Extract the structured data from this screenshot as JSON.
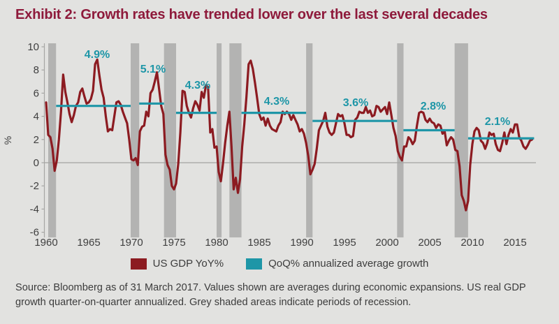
{
  "title": "Exhibit 2: Growth rates have trended lower over the last several decades",
  "source_note": "Source: Bloomberg as of 31 March 2017. Values shown are averages during economic expansions. US real GDP growth quarter-on-quarter annualized. Grey shaded areas indicate periods of recession.",
  "legend": [
    {
      "label": "US GDP YoY%",
      "color": "#8c1b21"
    },
    {
      "label": "QoQ% annualized average growth",
      "color": "#1e96a7"
    }
  ],
  "colors": {
    "title": "#8e1a3b",
    "gdp_line": "#8c1b21",
    "average_line": "#1e96a7",
    "recession": "#b3b3b2",
    "axis": "#a6a6a4",
    "zero_line": "#a3a3a1",
    "background": "#e2e2e0"
  },
  "chart_data": {
    "type": "line",
    "title": "Exhibit 2: Growth rates have trended lower over the last several decades",
    "xlabel": "",
    "ylabel": "%",
    "ylim": [
      -6,
      10
    ],
    "yticks": [
      10,
      8,
      6,
      4,
      2,
      0,
      -2,
      -4,
      -6
    ],
    "xticks": [
      1960,
      1965,
      1970,
      1975,
      1980,
      1985,
      1990,
      1995,
      2000,
      2005,
      2010,
      2015
    ],
    "grid": "zero-line-only",
    "legend_position": "bottom-center",
    "x_start": 1960.0,
    "x_step": 0.25,
    "x_end": 2017.0,
    "series": [
      {
        "name": "US GDP YoY%",
        "unit": "%",
        "values": [
          5.2,
          2.4,
          2.2,
          1.2,
          -0.7,
          0.2,
          2.0,
          4.4,
          7.6,
          6.1,
          5.2,
          4.2,
          3.5,
          4.1,
          4.9,
          5.2,
          6.1,
          6.4,
          5.7,
          5.1,
          5.2,
          5.5,
          6.2,
          8.5,
          8.9,
          7.5,
          6.3,
          5.6,
          4.0,
          2.7,
          2.9,
          2.8,
          4.0,
          5.2,
          5.3,
          5.0,
          4.4,
          3.9,
          3.4,
          2.0,
          0.3,
          0.2,
          0.4,
          -0.2,
          2.7,
          3.1,
          3.2,
          4.4,
          4.0,
          6.0,
          6.3,
          7.0,
          7.8,
          6.4,
          4.9,
          4.2,
          0.7,
          -0.2,
          -0.6,
          -2.0,
          -2.3,
          -1.8,
          -0.1,
          2.6,
          6.2,
          6.1,
          4.9,
          4.3,
          3.9,
          4.7,
          5.3,
          5.0,
          4.5,
          6.1,
          5.6,
          6.7,
          6.5,
          2.6,
          2.9,
          1.3,
          1.4,
          -0.8,
          -1.6,
          -0.1,
          1.7,
          3.2,
          4.4,
          1.4,
          -2.3,
          -1.3,
          -2.6,
          -1.4,
          1.4,
          3.3,
          5.7,
          8.5,
          8.8,
          8.1,
          6.9,
          5.6,
          4.2,
          3.7,
          3.9,
          3.2,
          3.8,
          3.2,
          2.9,
          2.8,
          2.7,
          3.2,
          3.5,
          4.4,
          4.2,
          4.4,
          4.2,
          3.7,
          4.1,
          3.7,
          3.3,
          2.7,
          2.9,
          2.5,
          1.7,
          0.6,
          -1.0,
          -0.6,
          -0.1,
          1.2,
          2.8,
          3.2,
          3.6,
          4.3,
          3.1,
          2.6,
          2.4,
          2.6,
          3.4,
          4.2,
          4.0,
          4.1,
          3.4,
          2.4,
          2.4,
          2.2,
          2.3,
          3.7,
          3.9,
          4.4,
          4.3,
          4.3,
          4.8,
          4.3,
          4.5,
          4.0,
          4.1,
          4.9,
          4.8,
          4.4,
          4.6,
          4.8,
          4.2,
          5.2,
          4.1,
          3.0,
          2.3,
          1.0,
          0.5,
          0.2,
          1.4,
          1.4,
          2.2,
          2.0,
          1.6,
          1.9,
          3.2,
          4.3,
          4.4,
          4.3,
          3.7,
          3.5,
          3.8,
          3.5,
          3.4,
          3.0,
          3.3,
          3.2,
          2.5,
          2.7,
          1.5,
          1.9,
          2.2,
          2.0,
          1.1,
          1.0,
          -0.3,
          -2.8,
          -3.3,
          -4.1,
          -3.3,
          -0.2,
          1.6,
          2.7,
          3.0,
          2.8,
          1.9,
          1.7,
          1.2,
          1.7,
          2.6,
          2.4,
          2.5,
          1.6,
          1.1,
          1.0,
          1.7,
          2.6,
          1.6,
          2.4,
          2.9,
          2.6,
          3.3,
          3.3,
          2.2,
          1.9,
          1.4,
          1.2,
          1.5,
          1.9,
          2.0
        ]
      }
    ],
    "expansion_averages": [
      {
        "label": "4.9%",
        "value": 4.9,
        "start": 1961.17,
        "end": 1969.92
      },
      {
        "label": "5.1%",
        "value": 5.1,
        "start": 1970.92,
        "end": 1973.83
      },
      {
        "label": "4.3%",
        "value": 4.3,
        "start": 1975.25,
        "end": 1980.0
      },
      {
        "label": "4.3%",
        "value": 4.3,
        "start": 1982.92,
        "end": 1990.5
      },
      {
        "label": "3.6%",
        "value": 3.6,
        "start": 1991.25,
        "end": 2001.17
      },
      {
        "label": "2.8%",
        "value": 2.8,
        "start": 2001.92,
        "end": 2007.92
      },
      {
        "label": "2.1%",
        "value": 2.1,
        "start": 2009.5,
        "end": 2017.25
      }
    ],
    "recessions": [
      {
        "start": 1960.25,
        "end": 1961.17
      },
      {
        "start": 1969.92,
        "end": 1970.92
      },
      {
        "start": 1973.83,
        "end": 1975.25
      },
      {
        "start": 1980.0,
        "end": 1980.58
      },
      {
        "start": 1981.5,
        "end": 1982.92
      },
      {
        "start": 1990.5,
        "end": 1991.25
      },
      {
        "start": 2001.17,
        "end": 2001.92
      },
      {
        "start": 2007.92,
        "end": 2009.5
      }
    ]
  }
}
